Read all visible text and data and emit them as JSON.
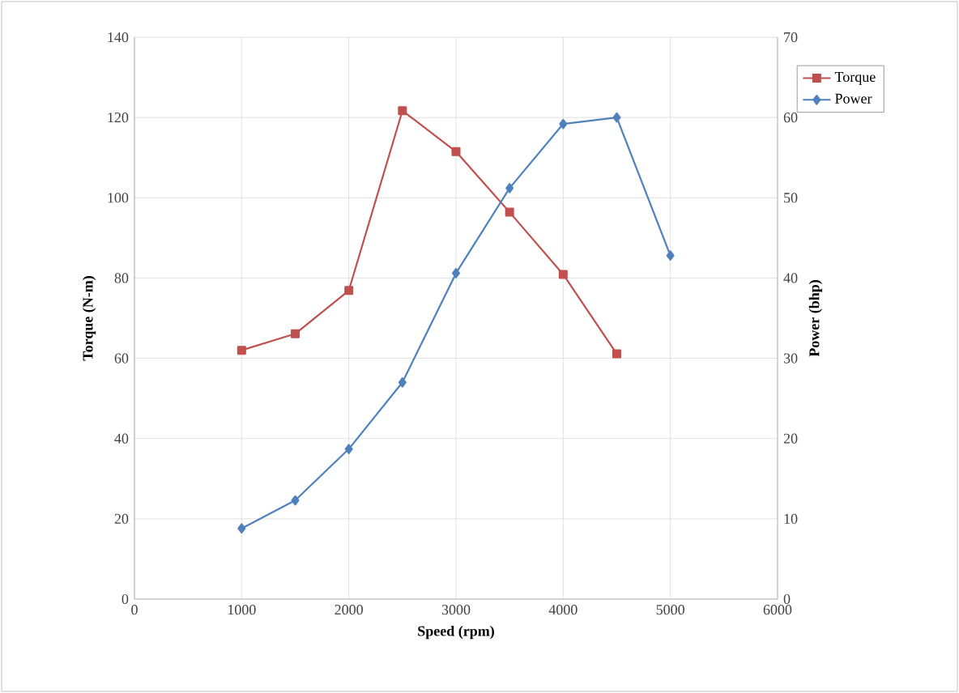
{
  "chart_data": {
    "type": "line",
    "xlabel": "Speed  (rpm)",
    "ylabel": "Torque   (N-m)",
    "y2label": "Power  (bhp)",
    "xlim": [
      0,
      6000
    ],
    "xticks": [
      0,
      1000,
      2000,
      3000,
      4000,
      5000,
      6000
    ],
    "ylim": [
      0,
      140
    ],
    "yticks": [
      0,
      20,
      40,
      60,
      80,
      100,
      120,
      140
    ],
    "y2lim": [
      0,
      70
    ],
    "y2ticks": [
      0,
      10,
      20,
      30,
      40,
      50,
      60,
      70
    ],
    "grid": true,
    "legend": "right",
    "line_style": "solid",
    "series": [
      {
        "name": "Torque",
        "color": "#c0504d",
        "marker": "square",
        "x": [
          1000,
          1500,
          2000,
          2500,
          3000,
          3500,
          4000,
          4500
        ],
        "values": [
          62.0,
          66.1,
          76.9,
          121.7,
          111.5,
          96.4,
          80.9,
          61.1
        ]
      },
      {
        "name": "Power",
        "color": "#4f81bd",
        "marker": "diamond",
        "axis": "y2",
        "x": [
          1000,
          1500,
          2000,
          2500,
          3000,
          3500,
          4000,
          4500,
          5000
        ],
        "values": [
          8.8,
          12.3,
          18.7,
          27.0,
          40.6,
          51.2,
          59.2,
          60.0,
          42.8
        ]
      }
    ]
  }
}
